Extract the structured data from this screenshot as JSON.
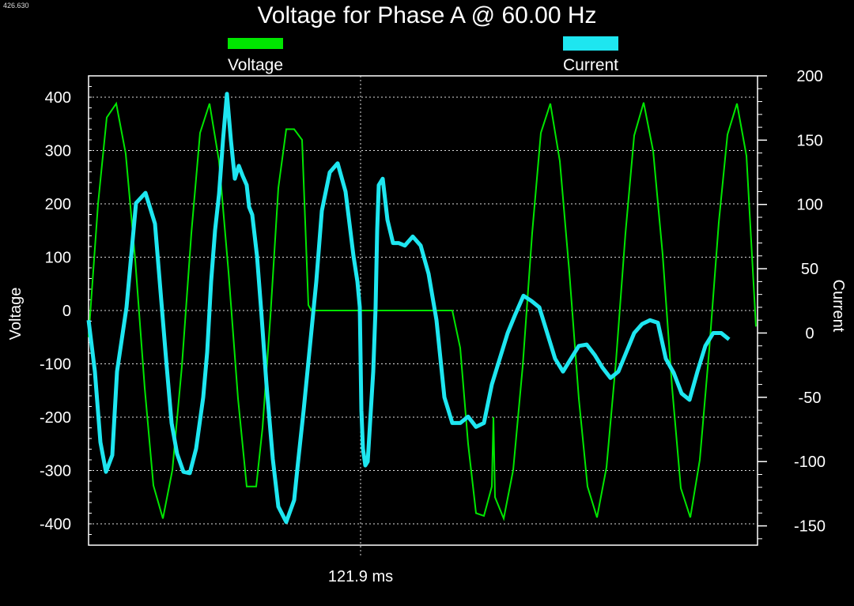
{
  "corner_label": "426.630",
  "chart_data": {
    "type": "line",
    "title": "Voltage for Phase A @ 60.00 Hz",
    "cursor_label": "121.9 ms",
    "ylabel": "Voltage",
    "y2label": "Current",
    "ylim": [
      -440,
      440
    ],
    "y2lim": [
      -165,
      200
    ],
    "yticks": [
      400,
      300,
      200,
      100,
      0,
      -100,
      -200,
      -300,
      -400
    ],
    "ytick_labels": [
      "400",
      "300",
      "200",
      "100",
      "0",
      "-100",
      "-200",
      "-300",
      "-400"
    ],
    "y2ticks": [
      200,
      150,
      100,
      50,
      0,
      -50,
      -100,
      -150
    ],
    "y2tick_labels": [
      "200",
      "150",
      "100",
      "50",
      "0",
      "-50",
      "-100",
      "-150"
    ],
    "grid": true,
    "legend_position": "top",
    "series": [
      {
        "name": "Voltage",
        "axis": "left",
        "color": "#00e600",
        "cols": [
          0,
          12,
          23,
          35,
          47,
          59,
          71,
          82,
          94,
          106,
          118,
          130,
          141,
          153,
          165,
          177,
          189,
          200,
          212,
          220,
          230,
          240,
          250,
          260,
          270,
          278,
          282,
          285,
          288,
          292,
          300,
          320,
          340,
          400,
          452,
          460,
          470,
          480,
          490,
          500,
          510,
          512,
          514,
          525,
          537,
          549,
          561,
          572,
          584,
          596,
          608,
          620,
          631,
          643,
          655,
          667,
          679,
          690,
          702,
          714,
          726,
          738,
          749,
          761,
          773,
          785,
          797,
          808,
          820,
          832,
          844
        ],
        "values": [
          -50,
          200,
          362,
          388,
          294,
          95,
          -145,
          -328,
          -390,
          -299,
          -105,
          145,
          333,
          388,
          280,
          72,
          -165,
          -330,
          -330,
          -220,
          -10,
          230,
          340,
          340,
          320,
          10,
          0,
          0,
          0,
          0,
          0,
          0,
          0,
          0,
          0,
          0,
          -70,
          -250,
          -380,
          -385,
          -330,
          -200,
          -350,
          -390,
          -299,
          -105,
          145,
          333,
          388,
          280,
          72,
          -165,
          -330,
          -388,
          -294,
          -95,
          145,
          328,
          390,
          299,
          105,
          -145,
          -333,
          -388,
          -280,
          -72,
          165,
          330,
          388,
          290,
          -30
        ]
      },
      {
        "name": "Current",
        "axis": "right",
        "color": "#1ee6f0",
        "cols": [
          0,
          8,
          15,
          22,
          30,
          36,
          48,
          60,
          72,
          84,
          90,
          98,
          105,
          112,
          120,
          128,
          136,
          145,
          150,
          155,
          160,
          165,
          170,
          175,
          180,
          185,
          190,
          195,
          200,
          203,
          207,
          210,
          213,
          218,
          225,
          233,
          240,
          250,
          260,
          265,
          272,
          280,
          288,
          295,
          305,
          315,
          325,
          335,
          340,
          343,
          345,
          347,
          350,
          353,
          355,
          357,
          360,
          363,
          365,
          367,
          372,
          378,
          385,
          392,
          400,
          410,
          420,
          430,
          440,
          450,
          460,
          470,
          480,
          490,
          500,
          510,
          520,
          530,
          540,
          550,
          560,
          570,
          580,
          590,
          600,
          610,
          620,
          630,
          640,
          650,
          660,
          670,
          680,
          690,
          700,
          710,
          720,
          730,
          740,
          750,
          760,
          770,
          780,
          790,
          800,
          810,
          820,
          830,
          840,
          846
        ],
        "values": [
          10,
          -30,
          -85,
          -108,
          -95,
          -30,
          20,
          101,
          109,
          85,
          40,
          -20,
          -70,
          -94,
          -108,
          -109,
          -90,
          -50,
          -15,
          40,
          80,
          108,
          150,
          186,
          150,
          120,
          130,
          122,
          115,
          98,
          92,
          76,
          60,
          20,
          -40,
          -98,
          -135,
          -147,
          -130,
          -100,
          -60,
          -10,
          40,
          95,
          125,
          132,
          110,
          60,
          40,
          20,
          -60,
          -90,
          -103,
          -100,
          -80,
          -60,
          -30,
          20,
          80,
          115,
          120,
          88,
          70,
          70,
          68,
          75,
          68,
          46,
          10,
          -50,
          -70,
          -70,
          -65,
          -73,
          -70,
          -40,
          -20,
          0,
          15,
          29,
          25,
          20,
          0,
          -20,
          -30,
          -20,
          -10,
          -9,
          -17,
          -27,
          -35,
          -30,
          -15,
          0,
          7,
          10,
          8,
          -20,
          -31,
          -47,
          -52,
          -30,
          -10,
          0,
          0,
          -5
        ]
      }
    ]
  }
}
